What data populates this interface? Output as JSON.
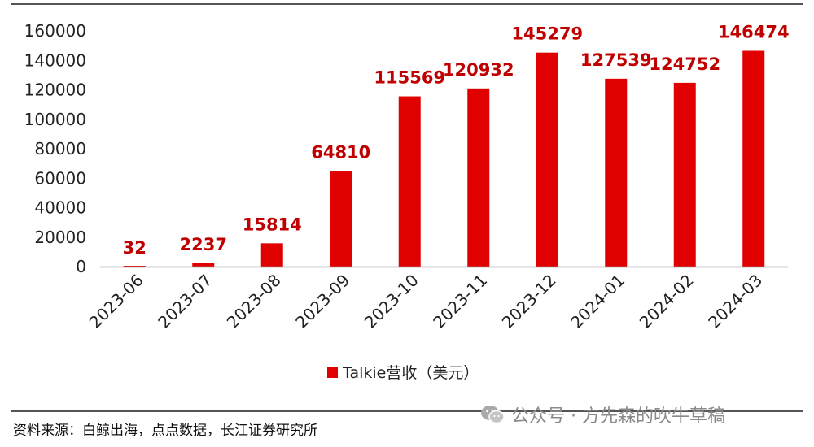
{
  "chart_data": {
    "type": "bar",
    "categories": [
      "2023-06",
      "2023-07",
      "2023-08",
      "2023-09",
      "2023-10",
      "2023-11",
      "2023-12",
      "2024-01",
      "2024-02",
      "2024-03"
    ],
    "series": [
      {
        "name": "Talkie营收（美元）",
        "values": [
          32,
          2237,
          15814,
          64810,
          115569,
          120932,
          145279,
          127539,
          124752,
          146474
        ]
      }
    ],
    "y_ticks": [
      "0",
      "20000",
      "40000",
      "60000",
      "80000",
      "100000",
      "120000",
      "140000",
      "160000"
    ],
    "ylim": [
      0,
      160000
    ],
    "legend_position": "bottom-center",
    "grid": false,
    "bar_color": "#e00000",
    "label_color": "#c00000"
  },
  "footer": {
    "source": "资料来源：白鲸出海，点点数据，长江证券研究所",
    "watermark": "公众号 · 方先森的吹牛草稿",
    "watermark_icon": "wechat-icon"
  }
}
